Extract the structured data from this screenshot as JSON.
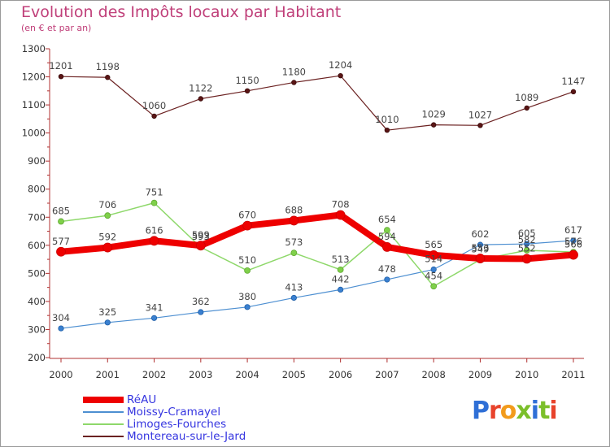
{
  "title": "Evolution des Impôts locaux par Habitant",
  "subtitle": "(en € et par an)",
  "logo": {
    "text": "Proxiti",
    "colors": [
      "#2f6fd6",
      "#e8432c",
      "#f29b1c",
      "#7bbf2a",
      "#2f6fd6",
      "#7bbf2a",
      "#e8432c"
    ]
  },
  "chart_data": {
    "type": "line",
    "title": "Evolution des Impôts locaux par Habitant",
    "subtitle": "(en € et par an)",
    "x": [
      "2000",
      "2001",
      "2002",
      "2003",
      "2004",
      "2005",
      "2006",
      "2007",
      "2008",
      "2009",
      "2010",
      "2011"
    ],
    "y_ticks": [
      "200",
      "300",
      "400",
      "500",
      "600",
      "700",
      "800",
      "900",
      "1000",
      "1100",
      "1200",
      "1300"
    ],
    "ylim": [
      200,
      1300
    ],
    "grid": false,
    "legend_position": "bottom-left",
    "series": [
      {
        "name": "Montereau-sur-le-Jard",
        "color": "#6b2121",
        "values": [
          1201,
          1198,
          1060,
          1122,
          1150,
          1180,
          1204,
          1010,
          1029,
          1027,
          1089,
          1147
        ]
      },
      {
        "name": "Moissy-Cramayel",
        "color": "#4d8fd1",
        "values": [
          304,
          325,
          341,
          362,
          380,
          413,
          442,
          478,
          514,
          602,
          605,
          617
        ]
      },
      {
        "name": "Limoges-Fourches",
        "color": "#8ed86a",
        "values": [
          685,
          706,
          751,
          593,
          510,
          573,
          513,
          654,
          454,
          549,
          582,
          576
        ]
      },
      {
        "name": "RéAU",
        "color": "#ee0000",
        "values": [
          577,
          592,
          616,
          599,
          670,
          688,
          708,
          594,
          565,
          553,
          552,
          566
        ]
      }
    ],
    "legend": [
      {
        "name": "RéAU",
        "color": "#ee0000"
      },
      {
        "name": "Moissy-Cramayel",
        "color": "#4d8fd1"
      },
      {
        "name": "Limoges-Fourches",
        "color": "#8ed86a"
      },
      {
        "name": "Montereau-sur-le-Jard",
        "color": "#6b2121"
      }
    ]
  }
}
